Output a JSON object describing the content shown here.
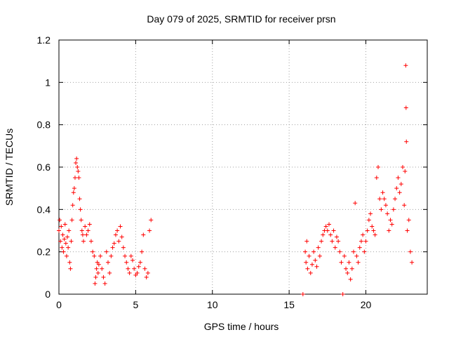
{
  "chart_data": {
    "type": "scatter",
    "title": "Day 079 of 2025, SRMTID for receiver prsn",
    "xlabel": "GPS time / hours",
    "ylabel": "SRMTID / TECUs",
    "xlim": [
      0,
      24
    ],
    "ylim": [
      0,
      1.2
    ],
    "xticks": [
      0,
      5,
      10,
      15,
      20
    ],
    "xtick_labels": [
      "0",
      "5",
      "10",
      "15",
      "20"
    ],
    "yticks": [
      0,
      0.2,
      0.4,
      0.6,
      0.8,
      1.0,
      1.2
    ],
    "ytick_labels": [
      "0",
      "0.2",
      "0.4",
      "0.6",
      "0.8",
      "1",
      "1.2"
    ],
    "grid": true,
    "marker": "+",
    "color": "#ff0000",
    "series": [
      {
        "name": "SRMTID",
        "points": [
          [
            0.0,
            0.3
          ],
          [
            0.05,
            0.35
          ],
          [
            0.1,
            0.25
          ],
          [
            0.15,
            0.32
          ],
          [
            0.2,
            0.22
          ],
          [
            0.25,
            0.28
          ],
          [
            0.3,
            0.2
          ],
          [
            0.35,
            0.26
          ],
          [
            0.4,
            0.33
          ],
          [
            0.45,
            0.24
          ],
          [
            0.5,
            0.18
          ],
          [
            0.55,
            0.27
          ],
          [
            0.6,
            0.22
          ],
          [
            0.65,
            0.3
          ],
          [
            0.7,
            0.15
          ],
          [
            0.75,
            0.12
          ],
          [
            0.8,
            0.25
          ],
          [
            0.85,
            0.35
          ],
          [
            0.9,
            0.42
          ],
          [
            0.95,
            0.48
          ],
          [
            1.0,
            0.5
          ],
          [
            1.05,
            0.55
          ],
          [
            1.1,
            0.62
          ],
          [
            1.15,
            0.64
          ],
          [
            1.2,
            0.6
          ],
          [
            1.25,
            0.58
          ],
          [
            1.3,
            0.55
          ],
          [
            1.35,
            0.45
          ],
          [
            1.4,
            0.4
          ],
          [
            1.45,
            0.35
          ],
          [
            1.5,
            0.3
          ],
          [
            1.55,
            0.28
          ],
          [
            1.6,
            0.25
          ],
          [
            1.7,
            0.32
          ],
          [
            1.8,
            0.28
          ],
          [
            1.9,
            0.3
          ],
          [
            2.0,
            0.33
          ],
          [
            2.1,
            0.25
          ],
          [
            2.2,
            0.2
          ],
          [
            2.3,
            0.18
          ],
          [
            2.35,
            0.05
          ],
          [
            2.4,
            0.08
          ],
          [
            2.45,
            0.12
          ],
          [
            2.5,
            0.15
          ],
          [
            2.55,
            0.1
          ],
          [
            2.6,
            0.14
          ],
          [
            2.7,
            0.18
          ],
          [
            2.8,
            0.12
          ],
          [
            2.9,
            0.08
          ],
          [
            3.0,
            0.05
          ],
          [
            3.1,
            0.2
          ],
          [
            3.2,
            0.15
          ],
          [
            3.3,
            0.1
          ],
          [
            3.4,
            0.18
          ],
          [
            3.5,
            0.22
          ],
          [
            3.6,
            0.24
          ],
          [
            3.7,
            0.28
          ],
          [
            3.8,
            0.3
          ],
          [
            3.9,
            0.25
          ],
          [
            4.0,
            0.32
          ],
          [
            4.1,
            0.27
          ],
          [
            4.2,
            0.22
          ],
          [
            4.3,
            0.18
          ],
          [
            4.4,
            0.15
          ],
          [
            4.5,
            0.12
          ],
          [
            4.6,
            0.1
          ],
          [
            4.7,
            0.18
          ],
          [
            4.8,
            0.16
          ],
          [
            4.9,
            0.12
          ],
          [
            5.0,
            0.09
          ],
          [
            5.1,
            0.1
          ],
          [
            5.2,
            0.13
          ],
          [
            5.3,
            0.15
          ],
          [
            5.4,
            0.2
          ],
          [
            5.5,
            0.28
          ],
          [
            5.6,
            0.12
          ],
          [
            5.7,
            0.08
          ],
          [
            5.8,
            0.1
          ],
          [
            5.9,
            0.3
          ],
          [
            6.0,
            0.35
          ],
          [
            15.9,
            0.0
          ],
          [
            16.05,
            0.2
          ],
          [
            16.1,
            0.15
          ],
          [
            16.15,
            0.25
          ],
          [
            16.2,
            0.12
          ],
          [
            16.3,
            0.18
          ],
          [
            16.4,
            0.1
          ],
          [
            16.5,
            0.14
          ],
          [
            16.6,
            0.2
          ],
          [
            16.7,
            0.16
          ],
          [
            16.8,
            0.13
          ],
          [
            16.9,
            0.22
          ],
          [
            17.0,
            0.18
          ],
          [
            17.1,
            0.25
          ],
          [
            17.2,
            0.28
          ],
          [
            17.3,
            0.3
          ],
          [
            17.4,
            0.32
          ],
          [
            17.5,
            0.3
          ],
          [
            17.6,
            0.33
          ],
          [
            17.7,
            0.28
          ],
          [
            17.8,
            0.25
          ],
          [
            17.9,
            0.3
          ],
          [
            18.0,
            0.22
          ],
          [
            18.1,
            0.27
          ],
          [
            18.2,
            0.25
          ],
          [
            18.3,
            0.2
          ],
          [
            18.4,
            0.15
          ],
          [
            18.5,
            0.0
          ],
          [
            18.6,
            0.18
          ],
          [
            18.7,
            0.12
          ],
          [
            18.8,
            0.1
          ],
          [
            18.9,
            0.15
          ],
          [
            19.0,
            0.07
          ],
          [
            19.1,
            0.12
          ],
          [
            19.2,
            0.2
          ],
          [
            19.3,
            0.43
          ],
          [
            19.4,
            0.18
          ],
          [
            19.5,
            0.15
          ],
          [
            19.6,
            0.22
          ],
          [
            19.7,
            0.25
          ],
          [
            19.8,
            0.28
          ],
          [
            19.9,
            0.2
          ],
          [
            20.0,
            0.25
          ],
          [
            20.1,
            0.3
          ],
          [
            20.2,
            0.35
          ],
          [
            20.3,
            0.38
          ],
          [
            20.4,
            0.32
          ],
          [
            20.5,
            0.3
          ],
          [
            20.6,
            0.28
          ],
          [
            20.7,
            0.55
          ],
          [
            20.8,
            0.6
          ],
          [
            20.9,
            0.45
          ],
          [
            21.0,
            0.4
          ],
          [
            21.1,
            0.48
          ],
          [
            21.2,
            0.45
          ],
          [
            21.3,
            0.42
          ],
          [
            21.4,
            0.38
          ],
          [
            21.5,
            0.3
          ],
          [
            21.6,
            0.35
          ],
          [
            21.7,
            0.33
          ],
          [
            21.8,
            0.4
          ],
          [
            21.9,
            0.45
          ],
          [
            22.0,
            0.5
          ],
          [
            22.1,
            0.55
          ],
          [
            22.2,
            0.48
          ],
          [
            22.3,
            0.52
          ],
          [
            22.4,
            0.6
          ],
          [
            22.5,
            0.42
          ],
          [
            22.55,
            0.58
          ],
          [
            22.6,
            1.08
          ],
          [
            22.62,
            0.88
          ],
          [
            22.64,
            0.72
          ],
          [
            22.7,
            0.3
          ],
          [
            22.8,
            0.35
          ],
          [
            22.9,
            0.2
          ],
          [
            23.0,
            0.15
          ]
        ]
      }
    ]
  }
}
